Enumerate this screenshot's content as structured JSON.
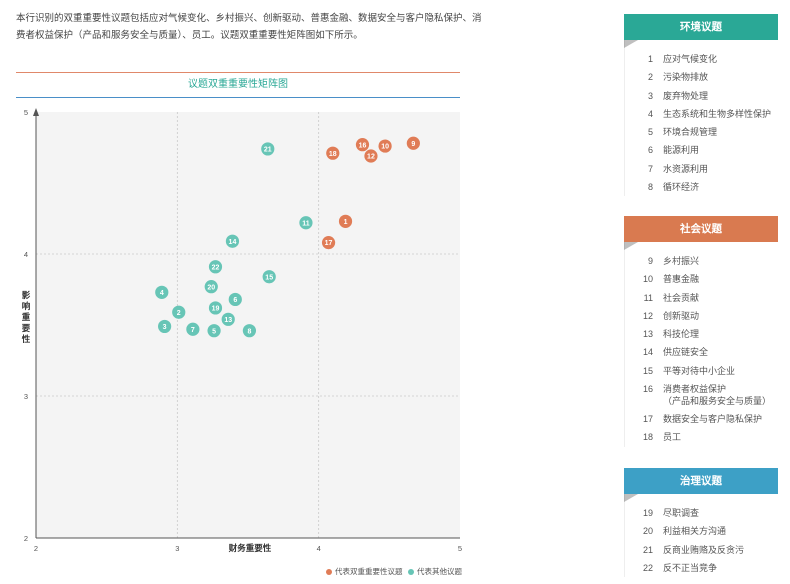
{
  "intro_text": "本行识别的双重重要性议题包括应对气候变化、乡村振兴、创新驱动、普惠金融、数据安全与客户隐私保护、消费者权益保护（产品和服务安全与质量）、员工。议题双重重要性矩阵图如下所示。",
  "colors": {
    "double": "#e07c56",
    "other": "#67c5b6",
    "env": "#2aa896",
    "social": "#d97a50",
    "gov": "#3da0c6"
  },
  "chart_data": {
    "type": "scatter",
    "title": "议题双重重要性矩阵图",
    "xlabel": "财务重要性",
    "ylabel": "影响重要性",
    "xlim": [
      2,
      5
    ],
    "ylim": [
      2,
      5
    ],
    "xticks": [
      2,
      3,
      4,
      5
    ],
    "yticks": [
      2,
      3,
      4,
      5
    ],
    "grid": "dashed at x=3,4 and y=3,4",
    "legend_position": "bottom-right",
    "series": [
      {
        "name": "代表双重重要性议题",
        "color": "#e07c56",
        "points": [
          {
            "id": "1",
            "x": 4.19,
            "y": 4.23
          },
          {
            "id": "9",
            "x": 4.67,
            "y": 4.78
          },
          {
            "id": "10",
            "x": 4.47,
            "y": 4.76
          },
          {
            "id": "12",
            "x": 4.37,
            "y": 4.69
          },
          {
            "id": "16",
            "x": 4.31,
            "y": 4.77
          },
          {
            "id": "17",
            "x": 4.07,
            "y": 4.08
          },
          {
            "id": "18",
            "x": 4.1,
            "y": 4.71
          }
        ]
      },
      {
        "name": "代表其他议题",
        "color": "#67c5b6",
        "points": [
          {
            "id": "2",
            "x": 3.01,
            "y": 3.59
          },
          {
            "id": "3",
            "x": 2.91,
            "y": 3.49
          },
          {
            "id": "4",
            "x": 2.89,
            "y": 3.73
          },
          {
            "id": "5",
            "x": 3.26,
            "y": 3.46
          },
          {
            "id": "6",
            "x": 3.41,
            "y": 3.68
          },
          {
            "id": "7",
            "x": 3.11,
            "y": 3.47
          },
          {
            "id": "8",
            "x": 3.51,
            "y": 3.46
          },
          {
            "id": "11",
            "x": 3.91,
            "y": 4.22
          },
          {
            "id": "13",
            "x": 3.36,
            "y": 3.54
          },
          {
            "id": "14",
            "x": 3.39,
            "y": 4.09
          },
          {
            "id": "15",
            "x": 3.65,
            "y": 3.84
          },
          {
            "id": "19",
            "x": 3.27,
            "y": 3.62
          },
          {
            "id": "20",
            "x": 3.24,
            "y": 3.77
          },
          {
            "id": "21",
            "x": 3.64,
            "y": 4.74
          },
          {
            "id": "22",
            "x": 3.27,
            "y": 3.91
          }
        ]
      }
    ]
  },
  "panels": {
    "env": {
      "title": "环境议题",
      "items": [
        {
          "num": "1",
          "label": "应对气候变化"
        },
        {
          "num": "2",
          "label": "污染物排放"
        },
        {
          "num": "3",
          "label": "废弃物处理"
        },
        {
          "num": "4",
          "label": "生态系统和生物多样性保护"
        },
        {
          "num": "5",
          "label": "环境合规管理"
        },
        {
          "num": "6",
          "label": "能源利用"
        },
        {
          "num": "7",
          "label": "水资源利用"
        },
        {
          "num": "8",
          "label": "循环经济"
        }
      ]
    },
    "social": {
      "title": "社会议题",
      "items": [
        {
          "num": "9",
          "label": "乡村振兴"
        },
        {
          "num": "10",
          "label": "普惠金融"
        },
        {
          "num": "11",
          "label": "社会贡献"
        },
        {
          "num": "12",
          "label": "创新驱动"
        },
        {
          "num": "13",
          "label": "科技伦理"
        },
        {
          "num": "14",
          "label": "供应链安全"
        },
        {
          "num": "15",
          "label": "平等对待中小企业"
        },
        {
          "num": "16",
          "label": "消费者权益保护",
          "label2": "（产品和服务安全与质量）"
        },
        {
          "num": "17",
          "label": "数据安全与客户隐私保护"
        },
        {
          "num": "18",
          "label": "员工"
        }
      ]
    },
    "gov": {
      "title": "治理议题",
      "items": [
        {
          "num": "19",
          "label": "尽职调查"
        },
        {
          "num": "20",
          "label": "利益相关方沟通"
        },
        {
          "num": "21",
          "label": "反商业贿赂及反贪污"
        },
        {
          "num": "22",
          "label": "反不正当竞争"
        }
      ]
    }
  }
}
